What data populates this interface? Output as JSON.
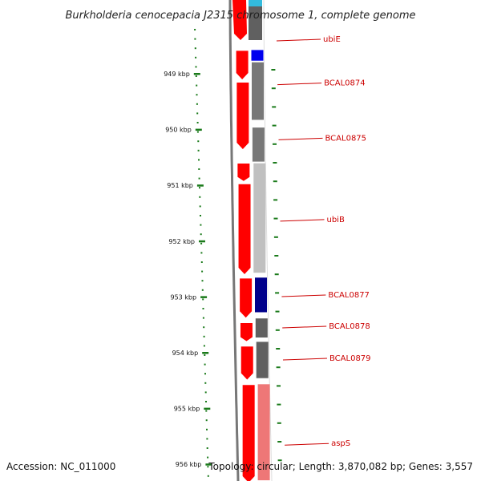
{
  "title": "Burkholderia cenocepacia J2315 chromosome 1, complete genome",
  "accession": "Accession: NC_011000",
  "summary": "Topology: circular; Length: 3,870,082 bp; Genes: 3,557",
  "colors": {
    "forward": "#ff0000",
    "label": "#cc0000",
    "tick": "#1a7a1a",
    "backbone": "#777777",
    "gray_dark": "#606060",
    "gray_mid": "#787878",
    "gray_light": "#c0c0c0",
    "blue": "#0000ee",
    "navy": "#00008b",
    "salmon": "#ee7777",
    "cyan": "#33bbdd"
  },
  "axis": {
    "unit": "kbp",
    "ticks": [
      "949 kbp",
      "950 kbp",
      "951 kbp",
      "952 kbp",
      "953 kbp",
      "954 kbp",
      "955 kbp",
      "956 kbp"
    ]
  },
  "genes": [
    {
      "label": "ubiE",
      "start_kbp": 948.56,
      "end_kbp": 948.78,
      "color": "blue"
    },
    {
      "label": "BCAL0874",
      "start_kbp": 948.78,
      "end_kbp": 949.84,
      "color": "gray_mid"
    },
    {
      "label": "BCAL0875",
      "start_kbp": 949.95,
      "end_kbp": 950.59,
      "color": "gray_mid"
    },
    {
      "label": "ubiB",
      "start_kbp": 950.59,
      "end_kbp": 952.58,
      "color": "gray_light"
    },
    {
      "label": "BCAL0877",
      "start_kbp": 952.64,
      "end_kbp": 953.29,
      "color": "navy"
    },
    {
      "label": "BCAL0878",
      "start_kbp": 953.37,
      "end_kbp": 953.74,
      "color": "gray_dark"
    },
    {
      "label": "BCAL0879",
      "start_kbp": 953.79,
      "end_kbp": 954.47,
      "color": "gray_dark"
    },
    {
      "label": "aspS",
      "start_kbp": 954.55,
      "end_kbp": 956.3,
      "color": "salmon"
    }
  ]
}
